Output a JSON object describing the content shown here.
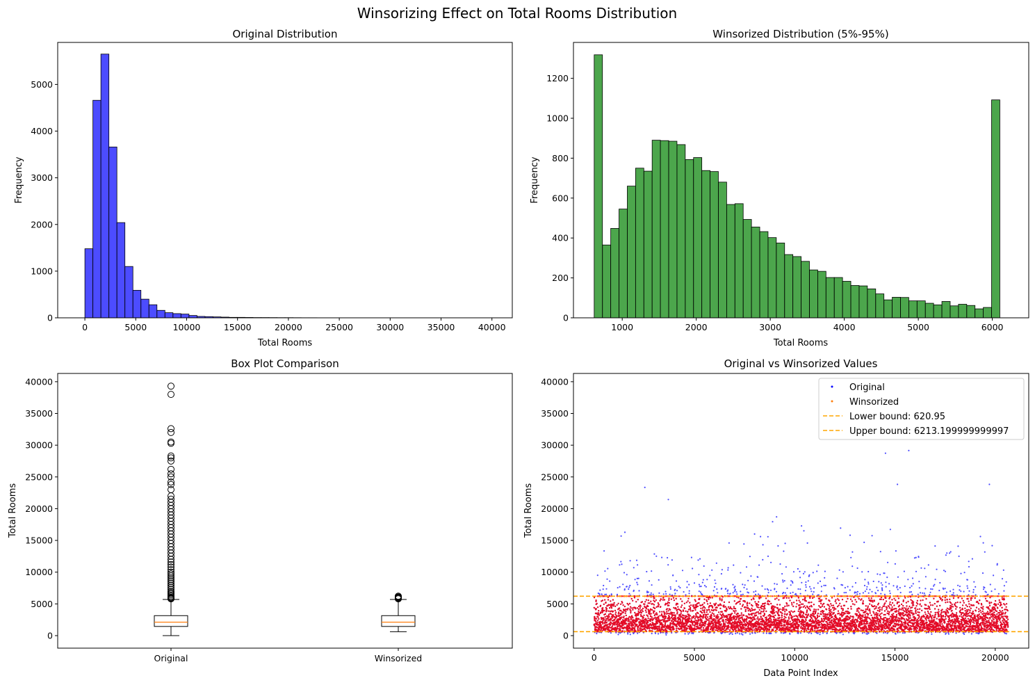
{
  "figure_title": "Winsorizing Effect on Total Rooms Distribution",
  "colors": {
    "original": "#0000ff",
    "winsorized_hist": "#008000",
    "winsorized_points": "#ff0000",
    "bounds": "#ffa500",
    "median": "#ff7f0e"
  },
  "chart_data": [
    {
      "type": "bar",
      "title": "Original Distribution",
      "xlabel": "Total Rooms",
      "ylabel": "Frequency",
      "xlim": [
        -2670,
        42000
      ],
      "ylim": [
        0,
        5900
      ],
      "xticks": [
        0,
        5000,
        10000,
        15000,
        20000,
        25000,
        30000,
        35000,
        40000
      ],
      "yticks": [
        0,
        1000,
        2000,
        3000,
        4000,
        5000
      ],
      "bin_start": 2,
      "bin_width": 786.7,
      "values": [
        1480,
        4660,
        5650,
        3660,
        2040,
        1100,
        590,
        400,
        280,
        160,
        110,
        90,
        80,
        50,
        30,
        25,
        20,
        15,
        10,
        10,
        8,
        6,
        6,
        5,
        4,
        4,
        3,
        2,
        2,
        1,
        1,
        1,
        1,
        1,
        1,
        1,
        1,
        1,
        1,
        1,
        1,
        1,
        1,
        1,
        1,
        1,
        1,
        1,
        1,
        1
      ],
      "color": "#0000ff"
    },
    {
      "type": "bar",
      "title": "Winsorized Distribution (5%-95%)",
      "xlabel": "Total Rooms",
      "ylabel": "Frequency",
      "xlim": [
        341,
        6492
      ],
      "ylim": [
        0,
        1380
      ],
      "xticks": [
        1000,
        2000,
        3000,
        4000,
        5000,
        6000
      ],
      "yticks": [
        0,
        200,
        400,
        600,
        800,
        1000,
        1200
      ],
      "bin_start": 620.95,
      "bin_width": 111.85,
      "values": [
        1318,
        365,
        448,
        545,
        660,
        750,
        735,
        890,
        888,
        885,
        868,
        793,
        803,
        738,
        733,
        680,
        568,
        572,
        493,
        455,
        432,
        402,
        375,
        317,
        307,
        283,
        240,
        233,
        202,
        202,
        183,
        162,
        160,
        145,
        120,
        90,
        103,
        102,
        85,
        85,
        73,
        65,
        82,
        60,
        68,
        62,
        45,
        52,
        1092
      ],
      "color": "#008000"
    },
    {
      "type": "box",
      "title": "Box Plot Comparison",
      "ylabel": "Total Rooms",
      "ylim": [
        -1970,
        41300
      ],
      "yticks": [
        0,
        5000,
        10000,
        15000,
        20000,
        25000,
        30000,
        35000,
        40000
      ],
      "categories": [
        "Original",
        "Winsorized"
      ],
      "boxes": [
        {
          "whisker_low": 2,
          "q1": 1448,
          "median": 2127,
          "q3": 3148,
          "whisker_high": 5700,
          "fliers": [
            5800,
            5900,
            6000,
            6200,
            6400,
            6600,
            6800,
            7000,
            7300,
            7600,
            7900,
            8200,
            8500,
            8800,
            9100,
            9400,
            9700,
            10000,
            10400,
            10800,
            11200,
            11600,
            12000,
            12500,
            13000,
            13500,
            14000,
            14500,
            15000,
            15500,
            16000,
            16500,
            17000,
            17500,
            18000,
            18500,
            19000,
            19500,
            20000,
            20500,
            21000,
            21500,
            22000,
            23000,
            23800,
            24200,
            25000,
            25500,
            26200,
            27500,
            28000,
            28300,
            30300,
            30500,
            32000,
            32600,
            38000,
            39300
          ]
        },
        {
          "whisker_low": 621,
          "q1": 1448,
          "median": 2127,
          "q3": 3148,
          "whisker_high": 5700,
          "fliers": [
            5800,
            5900,
            6000,
            6100,
            6213
          ]
        }
      ]
    },
    {
      "type": "scatter",
      "title": "Original vs Winsorized Values",
      "xlabel": "Data Point Index",
      "ylabel": "Total Rooms",
      "xlim": [
        -1030,
        21670
      ],
      "ylim": [
        -1970,
        41300
      ],
      "xticks": [
        0,
        5000,
        10000,
        15000,
        20000
      ],
      "yticks": [
        0,
        5000,
        10000,
        15000,
        20000,
        25000,
        30000,
        35000,
        40000
      ],
      "n_points": 20640,
      "series": [
        {
          "name": "Original",
          "color": "#0000ff"
        },
        {
          "name": "Winsorized",
          "color": "#ff0000"
        }
      ],
      "hlines": [
        {
          "name": "Lower bound: 620.95",
          "value": 620.95,
          "color": "#ffa500"
        },
        {
          "name": "Upper bound: 6213.199999999997",
          "value": 6213.2,
          "color": "#ffa500"
        }
      ],
      "legend_position": "top-right"
    }
  ]
}
